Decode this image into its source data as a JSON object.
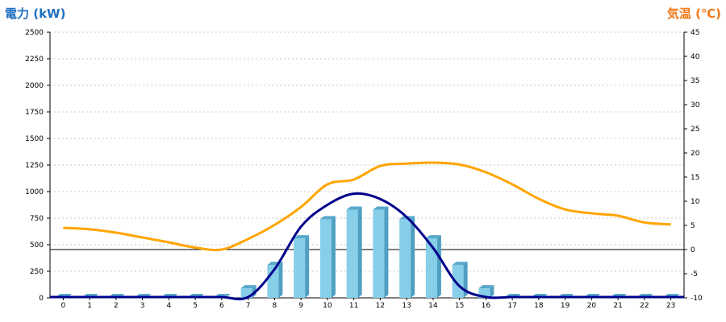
{
  "chart_data": {
    "type": "bar",
    "title_left": "電力 (kW)",
    "title_right": "気温 (℃)",
    "categories": [
      "0",
      "1",
      "2",
      "3",
      "4",
      "5",
      "6",
      "7",
      "8",
      "9",
      "10",
      "11",
      "12",
      "13",
      "14",
      "15",
      "16",
      "17",
      "18",
      "19",
      "20",
      "21",
      "22",
      "23"
    ],
    "y_left": {
      "range": [
        0,
        2500
      ],
      "ticks": [
        0,
        250,
        500,
        750,
        1000,
        1250,
        1500,
        1750,
        2000,
        2250,
        2500
      ]
    },
    "y_right": {
      "range": [
        -10,
        45
      ],
      "ticks": [
        -10,
        -5,
        0,
        5,
        10,
        15,
        20,
        25,
        30,
        35,
        40,
        45
      ]
    },
    "grid": true,
    "series": [
      {
        "kind": "bar",
        "axis": "left",
        "color": "#87cee9",
        "values": [
          0,
          0,
          0,
          0,
          0,
          0,
          0,
          90,
          310,
          560,
          740,
          830,
          830,
          740,
          560,
          310,
          90,
          0,
          0,
          0,
          0,
          0,
          0,
          0
        ]
      },
      {
        "kind": "line",
        "axis": "left",
        "color": "#00008b",
        "values": [
          0,
          0,
          0,
          0,
          0,
          0,
          0,
          0,
          270,
          670,
          875,
          980,
          930,
          760,
          470,
          110,
          0,
          0,
          0,
          0,
          0,
          0,
          0,
          0
        ]
      },
      {
        "kind": "line",
        "axis": "right",
        "color": "#ffa500",
        "values": [
          4.5,
          4.2,
          3.5,
          2.5,
          1.5,
          0.4,
          0,
          2.2,
          5.1,
          8.8,
          13.5,
          14.5,
          17.3,
          17.8,
          18,
          17.6,
          16,
          13.5,
          10.5,
          8.3,
          7.5,
          7,
          5.6,
          5.2
        ]
      }
    ]
  }
}
